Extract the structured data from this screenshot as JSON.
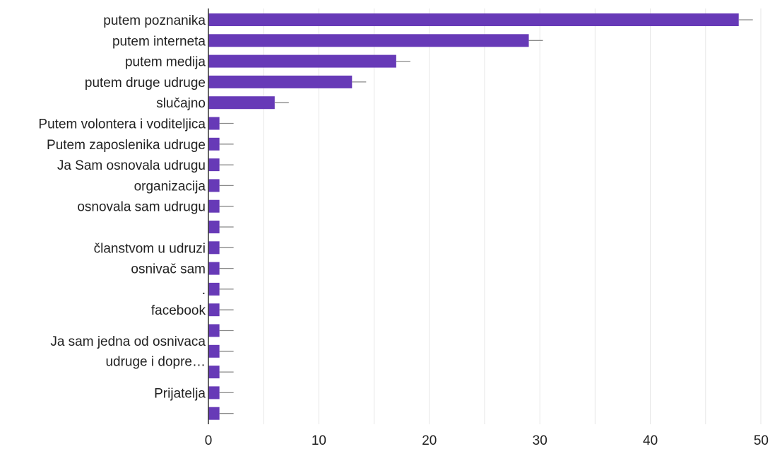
{
  "chart_data": {
    "type": "bar",
    "orientation": "horizontal",
    "categories": [
      "putem poznanika",
      "putem interneta",
      "putem medija",
      "putem druge udruge",
      "slučajno",
      "Putem volontera i voditeljica",
      "Putem zaposlenika udruge",
      "Ja Sam osnovala udrugu",
      "organizacija",
      "osnovala sam udrugu",
      "",
      "članstvom u udruzi",
      "osnivač sam",
      ".",
      "facebook",
      "",
      "",
      "",
      "Prijatelja",
      ""
    ],
    "values": [
      48,
      29,
      17,
      13,
      6,
      1,
      1,
      1,
      1,
      1,
      1,
      1,
      1,
      1,
      1,
      1,
      1,
      1,
      1,
      1
    ],
    "extra_labels": [
      "Ja sam jedna od osnivaca",
      "udruge i dopre…"
    ],
    "xlim": [
      0,
      50
    ],
    "xticks": [
      0,
      10,
      20,
      30,
      40,
      50
    ],
    "grid": true,
    "bar_color": "#673ab7",
    "grid_color": "#e6e6e6",
    "axis_color": "#333333",
    "title": "",
    "xlabel": "",
    "ylabel": ""
  }
}
